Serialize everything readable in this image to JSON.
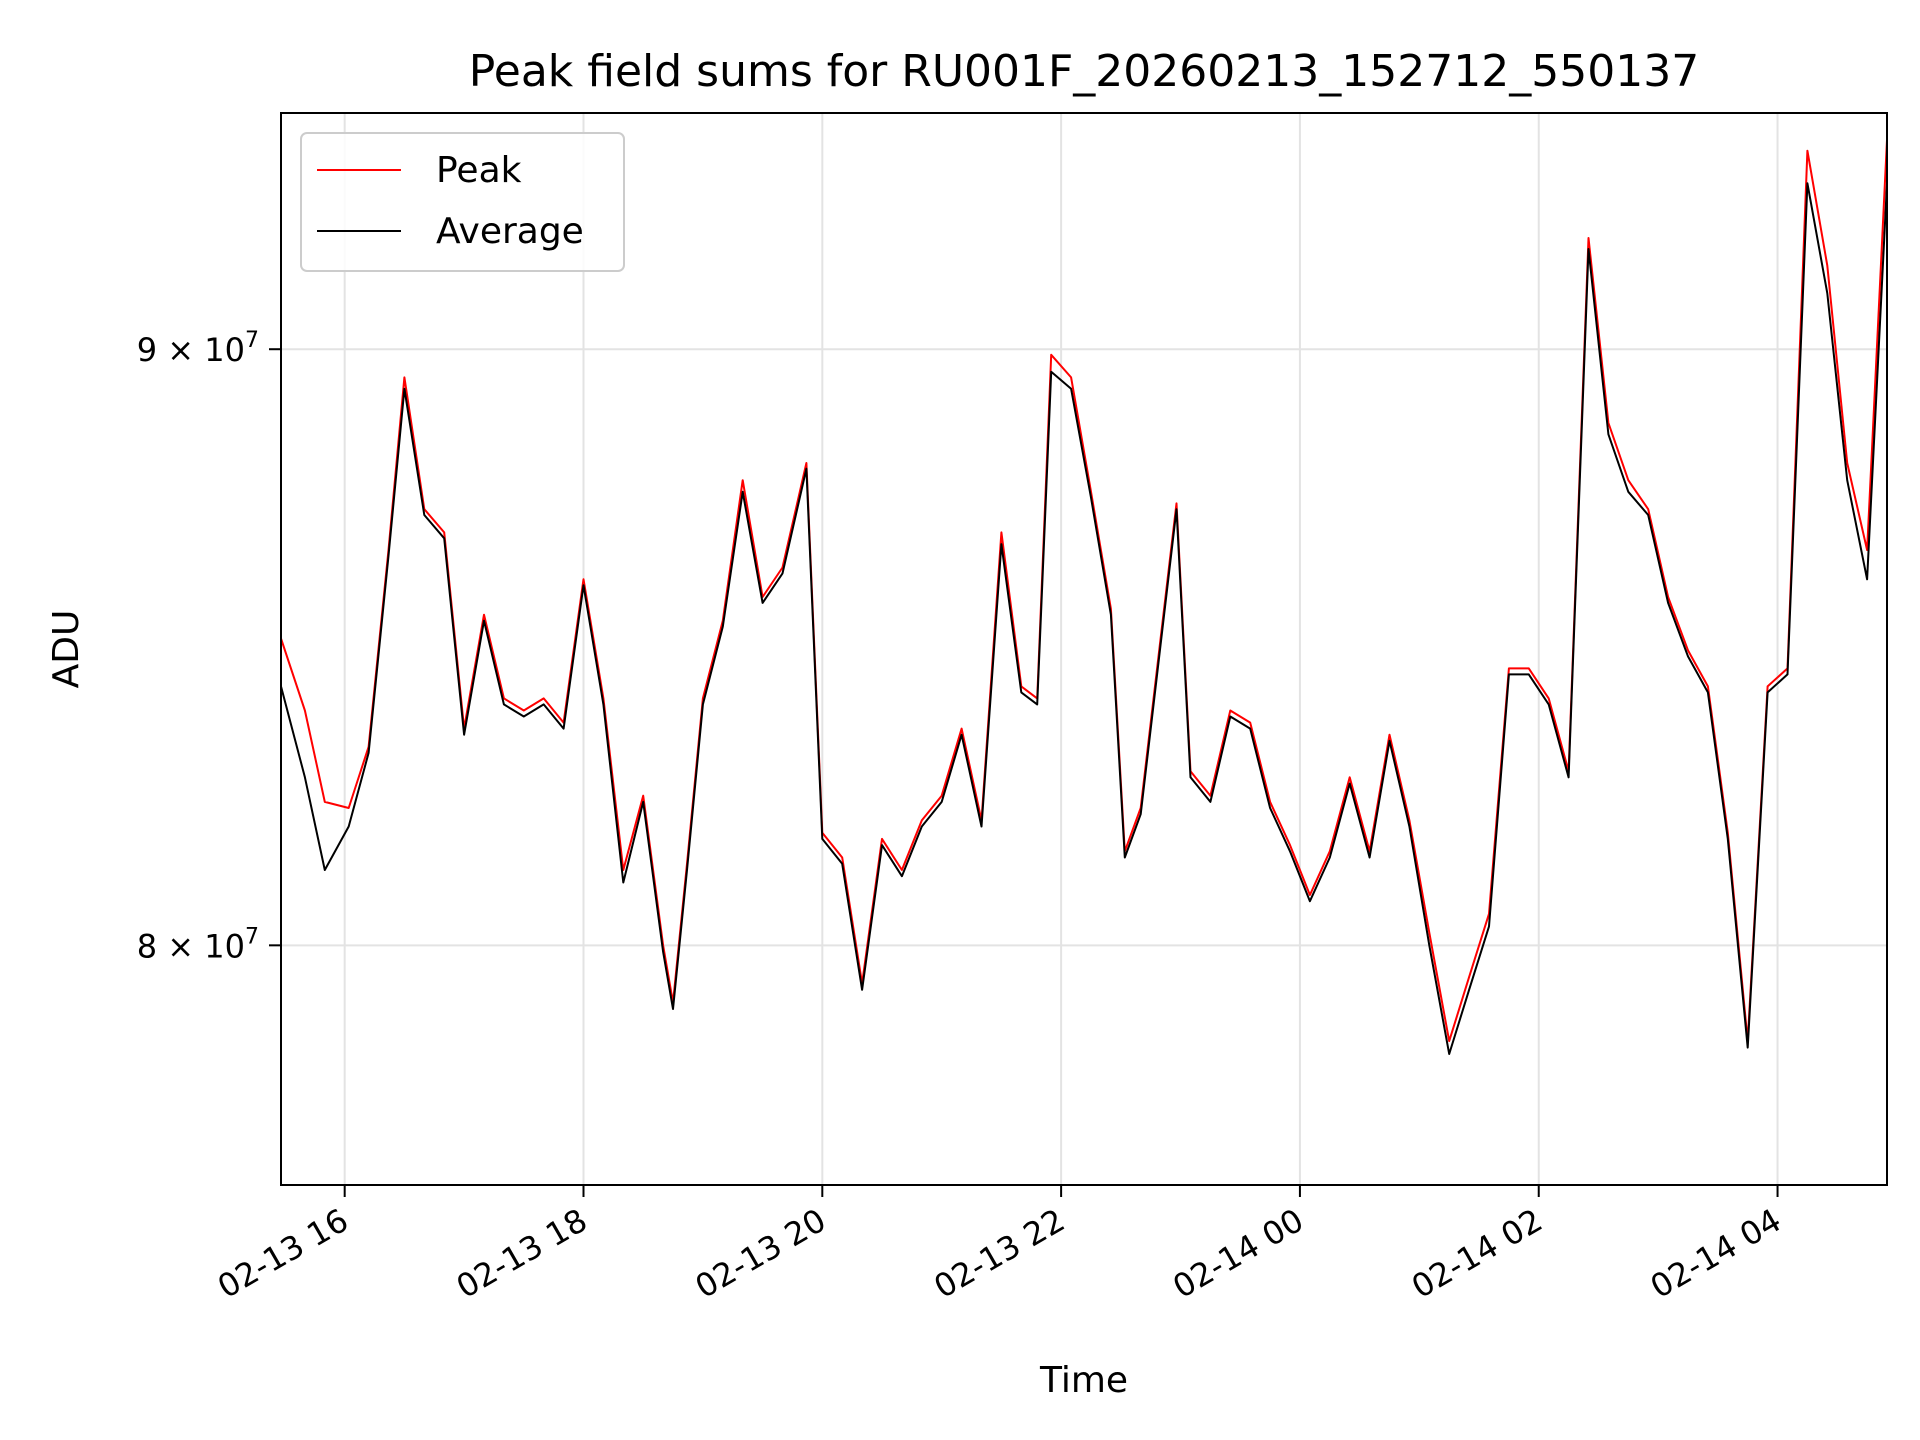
{
  "chart_data": {
    "type": "line",
    "title": "Peak field sums for RU001F_20260213_152712_550137",
    "xlabel": "Time",
    "ylabel": "ADU",
    "x_range": [
      "2026-02-13 15:28",
      "2026-02-14 04:55"
    ],
    "ylim": [
      76300000,
      94300000
    ],
    "y_scale": "log",
    "grid": true,
    "legend_position": "top-left",
    "x_ticks": [
      {
        "value": "2026-02-13 16:00",
        "label": "02-13 16"
      },
      {
        "value": "2026-02-13 18:00",
        "label": "02-13 18"
      },
      {
        "value": "2026-02-13 20:00",
        "label": "02-13 20"
      },
      {
        "value": "2026-02-13 22:00",
        "label": "02-13 22"
      },
      {
        "value": "2026-02-14 00:00",
        "label": "02-14 00"
      },
      {
        "value": "2026-02-14 02:00",
        "label": "02-14 02"
      },
      {
        "value": "2026-02-14 04:00",
        "label": "02-14 04"
      }
    ],
    "y_ticks": [
      {
        "value": 80000000,
        "base": "8",
        "exp": "7"
      },
      {
        "value": 90000000,
        "base": "9",
        "exp": "7"
      }
    ],
    "x": [
      "2026-02-13 15:28",
      "2026-02-13 15:40",
      "2026-02-13 15:50",
      "2026-02-13 16:02",
      "2026-02-13 16:12",
      "2026-02-13 16:22",
      "2026-02-13 16:30",
      "2026-02-13 16:40",
      "2026-02-13 16:50",
      "2026-02-13 17:00",
      "2026-02-13 17:10",
      "2026-02-13 17:20",
      "2026-02-13 17:30",
      "2026-02-13 17:40",
      "2026-02-13 17:50",
      "2026-02-13 18:00",
      "2026-02-13 18:10",
      "2026-02-13 18:20",
      "2026-02-13 18:30",
      "2026-02-13 18:40",
      "2026-02-13 18:45",
      "2026-02-13 18:52",
      "2026-02-13 19:00",
      "2026-02-13 19:10",
      "2026-02-13 19:20",
      "2026-02-13 19:30",
      "2026-02-13 19:40",
      "2026-02-13 19:52",
      "2026-02-13 20:00",
      "2026-02-13 20:10",
      "2026-02-13 20:20",
      "2026-02-13 20:30",
      "2026-02-13 20:40",
      "2026-02-13 20:50",
      "2026-02-13 21:00",
      "2026-02-13 21:10",
      "2026-02-13 21:20",
      "2026-02-13 21:30",
      "2026-02-13 21:40",
      "2026-02-13 21:48",
      "2026-02-13 21:55",
      "2026-02-13 22:05",
      "2026-02-13 22:15",
      "2026-02-13 22:25",
      "2026-02-13 22:32",
      "2026-02-13 22:40",
      "2026-02-13 22:50",
      "2026-02-13 22:58",
      "2026-02-13 23:05",
      "2026-02-13 23:15",
      "2026-02-13 23:25",
      "2026-02-13 23:35",
      "2026-02-13 23:45",
      "2026-02-13 23:55",
      "2026-02-14 00:05",
      "2026-02-14 00:15",
      "2026-02-14 00:25",
      "2026-02-14 00:35",
      "2026-02-14 00:45",
      "2026-02-14 00:55",
      "2026-02-14 01:05",
      "2026-02-14 01:15",
      "2026-02-14 01:25",
      "2026-02-14 01:35",
      "2026-02-14 01:45",
      "2026-02-14 01:55",
      "2026-02-14 02:05",
      "2026-02-14 02:15",
      "2026-02-14 02:25",
      "2026-02-14 02:35",
      "2026-02-14 02:45",
      "2026-02-14 02:55",
      "2026-02-14 03:05",
      "2026-02-14 03:15",
      "2026-02-14 03:25",
      "2026-02-14 03:35",
      "2026-02-14 03:45",
      "2026-02-14 03:55",
      "2026-02-14 04:05",
      "2026-02-14 04:15",
      "2026-02-14 04:25",
      "2026-02-14 04:35",
      "2026-02-14 04:45",
      "2026-02-14 04:55"
    ],
    "series": [
      {
        "name": "Peak",
        "color": "#ff0000",
        "values": [
          85000000,
          83800000,
          82300000,
          82200000,
          83200000,
          86500000,
          89500000,
          87200000,
          86800000,
          83500000,
          85400000,
          84000000,
          83800000,
          84000000,
          83600000,
          86000000,
          84000000,
          81200000,
          82400000,
          80000000,
          79100000,
          81300000,
          84000000,
          85300000,
          87700000,
          85700000,
          86200000,
          88000000,
          81800000,
          81400000,
          79400000,
          81700000,
          81200000,
          82000000,
          82400000,
          83500000,
          82000000,
          86800000,
          84200000,
          84000000,
          89900000,
          89500000,
          87500000,
          85500000,
          81500000,
          82200000,
          85000000,
          87300000,
          82800000,
          82400000,
          83800000,
          83600000,
          82300000,
          81600000,
          80800000,
          81500000,
          82700000,
          81500000,
          83400000,
          82000000,
          80200000,
          78500000,
          79500000,
          80500000,
          84500000,
          84500000,
          84000000,
          82800000,
          92000000,
          88700000,
          87700000,
          87200000,
          85700000,
          84800000,
          84200000,
          81800000,
          78500000,
          84200000,
          84500000,
          93600000,
          91500000,
          88000000,
          86500000,
          93800000
        ]
      },
      {
        "name": "Average",
        "color": "#000000",
        "values": [
          84200000,
          82700000,
          81200000,
          81900000,
          83100000,
          86400000,
          89300000,
          87100000,
          86700000,
          83400000,
          85300000,
          83900000,
          83700000,
          83900000,
          83500000,
          85900000,
          83900000,
          81000000,
          82300000,
          79900000,
          79000000,
          81200000,
          83900000,
          85200000,
          87500000,
          85600000,
          86100000,
          87900000,
          81700000,
          81300000,
          79300000,
          81600000,
          81100000,
          81900000,
          82300000,
          83400000,
          81900000,
          86600000,
          84100000,
          83900000,
          89600000,
          89300000,
          87400000,
          85400000,
          81400000,
          82100000,
          84900000,
          87200000,
          82700000,
          82300000,
          83700000,
          83500000,
          82200000,
          81500000,
          80700000,
          81400000,
          82600000,
          81400000,
          83300000,
          81900000,
          80000000,
          78300000,
          79300000,
          80300000,
          84400000,
          84400000,
          83900000,
          82700000,
          91800000,
          88500000,
          87500000,
          87100000,
          85600000,
          84700000,
          84100000,
          81700000,
          78400000,
          84100000,
          84400000,
          93000000,
          91000000,
          87700000,
          86000000,
          93000000
        ]
      }
    ]
  }
}
